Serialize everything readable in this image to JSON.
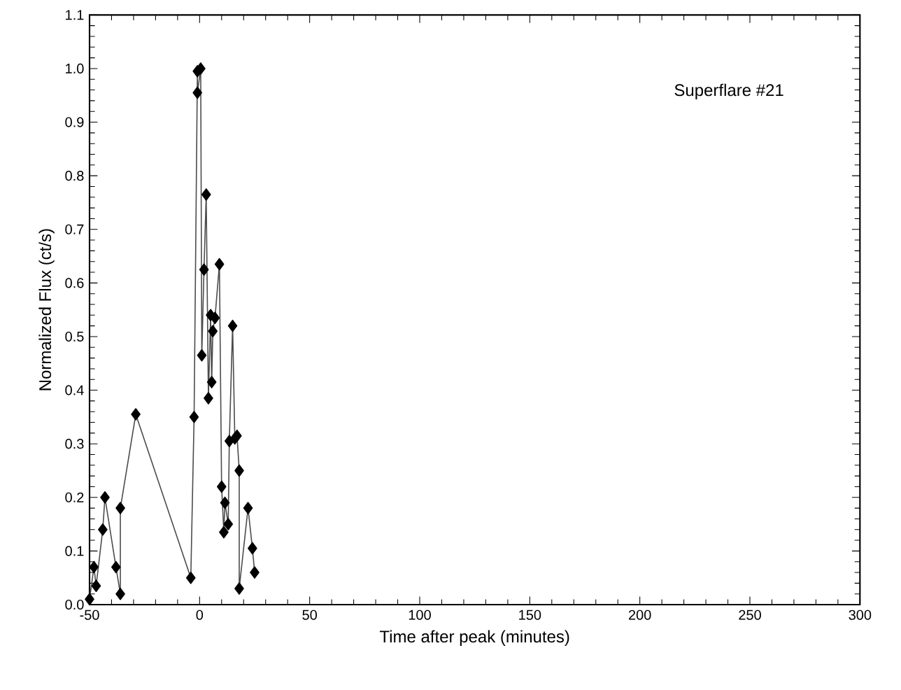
{
  "chart_data": {
    "type": "line",
    "xlabel": "Time after peak (minutes)",
    "ylabel": "Normalized Flux (ct/s)",
    "annotations": [
      "Superflare #21"
    ],
    "x": [
      -50,
      -48,
      -47,
      -44,
      -43,
      -38,
      -36,
      -36,
      -29,
      -4,
      -2.5,
      -1,
      -1,
      0.5,
      1,
      2,
      3,
      4,
      5,
      5.5,
      6,
      7,
      9,
      10,
      11,
      11.5,
      13,
      13.5,
      15,
      16,
      17,
      18,
      18,
      22,
      24,
      25
    ],
    "series": [
      {
        "color": "#000000",
        "values": [
          0.01,
          0.07,
          0.035,
          0.14,
          0.2,
          0.07,
          0.02,
          0.18,
          0.355,
          0.05,
          0.35,
          0.995,
          0.955,
          1.0,
          0.465,
          0.625,
          0.765,
          0.385,
          0.54,
          0.415,
          0.51,
          0.535,
          0.635,
          0.22,
          0.135,
          0.19,
          0.15,
          0.305,
          0.52,
          0.31,
          0.315,
          0.25,
          0.03,
          0.18,
          0.105,
          0.06
        ]
      }
    ],
    "xlim": [
      -50,
      300
    ],
    "ylim": [
      0,
      1.1
    ],
    "xticks": [
      -50,
      0,
      50,
      100,
      150,
      200,
      250,
      300
    ],
    "yticks": [
      {
        "value": 0,
        "label": "0.0"
      },
      {
        "value": 0.1,
        "label": "0.1"
      },
      {
        "value": 0.2,
        "label": "0.2"
      },
      {
        "value": 0.3,
        "label": "0.3"
      },
      {
        "value": 0.4,
        "label": "0.4"
      },
      {
        "value": 0.5,
        "label": "0.5"
      },
      {
        "value": 0.6,
        "label": "0.6"
      },
      {
        "value": 0.7,
        "label": "0.7"
      },
      {
        "value": 0.8,
        "label": "0.8"
      },
      {
        "value": 0.9,
        "label": "0.9"
      },
      {
        "value": 1.0,
        "label": "1.0"
      },
      {
        "value": 1.1,
        "label": "1.1"
      }
    ],
    "grid": false,
    "marker": "diamond",
    "line_style": "solid"
  }
}
